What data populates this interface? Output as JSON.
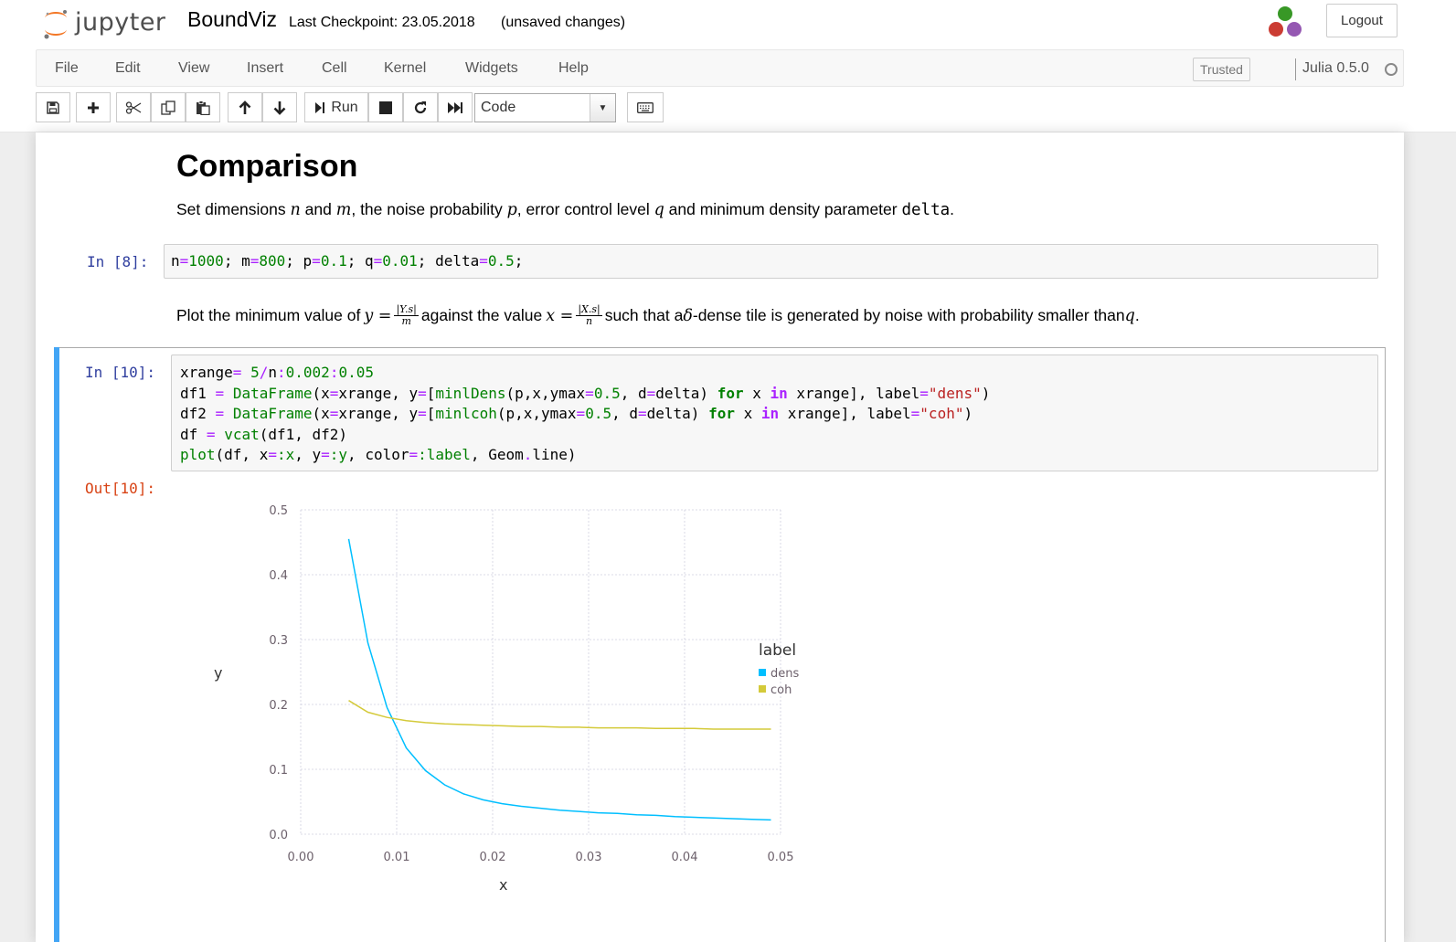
{
  "header": {
    "logo_text": "jupyter",
    "notebook_name": "BoundViz",
    "checkpoint": "Last Checkpoint: 23.05.2018",
    "save_status": "(unsaved changes)",
    "logout_label": "Logout"
  },
  "menubar": {
    "items": [
      "File",
      "Edit",
      "View",
      "Insert",
      "Cell",
      "Kernel",
      "Widgets",
      "Help"
    ],
    "trusted_label": "Trusted",
    "kernel_name": "Julia 0.5.0"
  },
  "toolbar": {
    "run_label": "Run",
    "cell_type": "Code",
    "icons": [
      "save-icon",
      "plus-icon",
      "cut-icon",
      "copy-icon",
      "paste-icon",
      "arrow-up-icon",
      "arrow-down-icon",
      "run-icon",
      "stop-icon",
      "restart-icon",
      "fast-forward-icon",
      "keyboard-icon"
    ]
  },
  "cells": {
    "heading": "Comparison",
    "md1": {
      "t1": "Set dimensions ",
      "n": "n",
      "t2": " and ",
      "m": "m",
      "t3": ", the noise probability ",
      "p": "p",
      "t4": ", error control level ",
      "q": "q",
      "t5": " and minimum density parameter ",
      "delta": "delta",
      "t6": "."
    },
    "in8_prompt": "In [8]:",
    "md2": {
      "t1": "Plot the minimum value of ",
      "y_eq": "y =",
      "frac_y_num": "|Y.s|",
      "frac_y_den": "m",
      "t2": " against the value ",
      "x_eq": "x =",
      "frac_x_num": "|X.s|",
      "frac_x_den": "n",
      "t3": " such that a ",
      "delta_sym": "δ",
      "t4": "-dense tile is generated by noise with probability smaller than ",
      "q": "q",
      "t5": "."
    },
    "in10_prompt": "In [10]:",
    "out10_prompt": "Out[10]:"
  },
  "chart_data": {
    "type": "line",
    "xlabel": "x",
    "ylabel": "y",
    "xlim": [
      0.0,
      0.05
    ],
    "ylim": [
      0.0,
      0.5
    ],
    "xticks": [
      "0.00",
      "0.01",
      "0.02",
      "0.03",
      "0.04",
      "0.05"
    ],
    "yticks": [
      "0.0",
      "0.1",
      "0.2",
      "0.3",
      "0.4",
      "0.5"
    ],
    "grid": true,
    "legend_title": "label",
    "legend_position": "right",
    "series": [
      {
        "name": "dens",
        "color": "#00bfff",
        "x": [
          0.005,
          0.007,
          0.009,
          0.011,
          0.013,
          0.015,
          0.017,
          0.019,
          0.021,
          0.023,
          0.025,
          0.027,
          0.029,
          0.031,
          0.033,
          0.035,
          0.037,
          0.039,
          0.041,
          0.043,
          0.045,
          0.047,
          0.049
        ],
        "y": [
          0.455,
          0.295,
          0.195,
          0.133,
          0.098,
          0.076,
          0.062,
          0.053,
          0.047,
          0.043,
          0.04,
          0.037,
          0.035,
          0.033,
          0.032,
          0.03,
          0.029,
          0.027,
          0.026,
          0.025,
          0.024,
          0.023,
          0.022
        ]
      },
      {
        "name": "coh",
        "color": "#d4ca3a",
        "x": [
          0.005,
          0.007,
          0.009,
          0.011,
          0.013,
          0.015,
          0.017,
          0.019,
          0.021,
          0.023,
          0.025,
          0.027,
          0.029,
          0.031,
          0.033,
          0.035,
          0.037,
          0.039,
          0.041,
          0.043,
          0.045,
          0.047,
          0.049
        ],
        "y": [
          0.206,
          0.188,
          0.18,
          0.175,
          0.172,
          0.17,
          0.169,
          0.168,
          0.167,
          0.166,
          0.166,
          0.165,
          0.165,
          0.164,
          0.164,
          0.164,
          0.163,
          0.163,
          0.163,
          0.162,
          0.162,
          0.162,
          0.162
        ]
      }
    ]
  }
}
